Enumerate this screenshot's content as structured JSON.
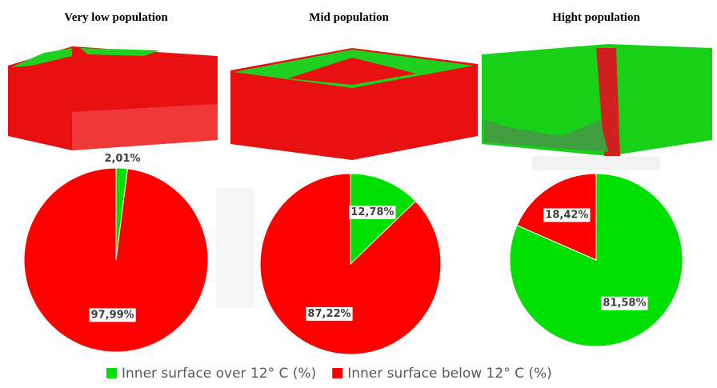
{
  "legend": [
    {
      "name": "Inner surface over 12° C (%)",
      "color": "#00e000"
    },
    {
      "name": "Inner surface below 12° C (%)",
      "color": "#ff0000"
    }
  ],
  "chart_data": [
    {
      "type": "pie",
      "title": "Very low population",
      "values": [
        2.01,
        97.99
      ],
      "value_labels": [
        "2,01%",
        "97,99%"
      ]
    },
    {
      "type": "pie",
      "title": "Mid population",
      "values": [
        12.78,
        87.22
      ],
      "value_labels": [
        "12,78%",
        "87,22%"
      ]
    },
    {
      "type": "pie",
      "title": "Hight population",
      "values": [
        81.58,
        18.42
      ],
      "value_labels": [
        "81,58%",
        "18,42%"
      ]
    }
  ]
}
